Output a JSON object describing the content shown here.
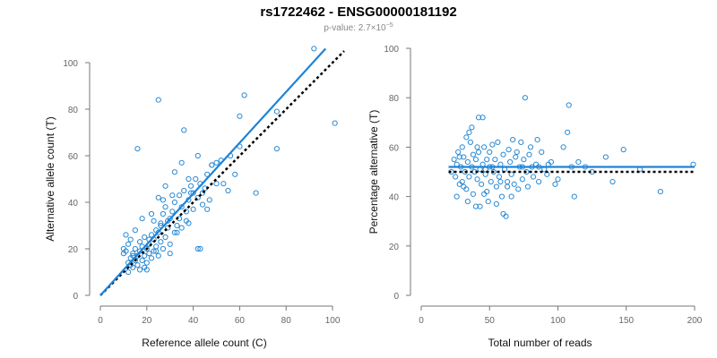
{
  "header": {
    "title": "rs1722462 - ENSG00000181192",
    "pvalue_prefix": "p-value: 2.7×10",
    "pvalue_exp": "−5"
  },
  "chart_data": [
    {
      "type": "scatter",
      "xlabel": "Reference allele count (C)",
      "ylabel": "Alternative allele count (T)",
      "xlim": [
        0,
        105
      ],
      "ylim": [
        0,
        100
      ],
      "xticks": [
        0,
        20,
        40,
        60,
        80,
        100
      ],
      "yticks": [
        0,
        20,
        40,
        60,
        80,
        100
      ],
      "grid": false,
      "point_color": "#2a8ad4",
      "fit_line": {
        "color": "#1f83d8",
        "x": [
          0,
          97
        ],
        "y": [
          0,
          106
        ]
      },
      "reference_line": {
        "color": "#000000",
        "style": "dotted",
        "x": [
          0,
          105
        ],
        "y": [
          0,
          105
        ]
      },
      "points": [
        [
          10,
          20
        ],
        [
          10,
          18
        ],
        [
          11,
          19
        ],
        [
          12,
          14
        ],
        [
          12,
          22
        ],
        [
          13,
          16
        ],
        [
          14,
          12
        ],
        [
          14,
          18
        ],
        [
          15,
          15
        ],
        [
          15,
          20
        ],
        [
          16,
          13
        ],
        [
          16,
          17
        ],
        [
          17,
          19
        ],
        [
          17,
          23
        ],
        [
          18,
          15
        ],
        [
          18,
          21
        ],
        [
          19,
          17
        ],
        [
          19,
          25
        ],
        [
          20,
          20
        ],
        [
          20,
          14
        ],
        [
          21,
          22
        ],
        [
          21,
          18
        ],
        [
          22,
          16
        ],
        [
          22,
          26
        ],
        [
          23,
          24
        ],
        [
          23,
          19
        ],
        [
          24,
          21
        ],
        [
          24,
          28
        ],
        [
          25,
          27
        ],
        [
          25,
          17
        ],
        [
          26,
          31
        ],
        [
          26,
          23
        ],
        [
          27,
          20
        ],
        [
          27,
          35
        ],
        [
          28,
          38
        ],
        [
          28,
          25
        ],
        [
          29,
          29
        ],
        [
          30,
          33
        ],
        [
          30,
          22
        ],
        [
          31,
          36
        ],
        [
          32,
          40
        ],
        [
          32,
          27
        ],
        [
          33,
          30
        ],
        [
          34,
          43
        ],
        [
          34,
          33
        ],
        [
          35,
          38
        ],
        [
          35,
          29
        ],
        [
          36,
          45
        ],
        [
          37,
          36
        ],
        [
          38,
          41
        ],
        [
          38,
          31
        ],
        [
          39,
          47
        ],
        [
          40,
          44
        ],
        [
          40,
          37
        ],
        [
          41,
          50
        ],
        [
          42,
          42
        ],
        [
          43,
          48
        ],
        [
          44,
          39
        ],
        [
          45,
          46
        ],
        [
          46,
          52
        ],
        [
          47,
          41
        ],
        [
          48,
          56
        ],
        [
          50,
          48
        ],
        [
          52,
          58
        ],
        [
          55,
          45
        ],
        [
          56,
          60
        ],
        [
          58,
          52
        ],
        [
          60,
          64
        ],
        [
          15,
          28
        ],
        [
          18,
          33
        ],
        [
          22,
          35
        ],
        [
          25,
          42
        ],
        [
          28,
          47
        ],
        [
          32,
          53
        ],
        [
          35,
          57
        ],
        [
          38,
          50
        ],
        [
          42,
          60
        ],
        [
          11,
          26
        ],
        [
          13,
          24
        ],
        [
          16,
          63
        ],
        [
          25,
          84
        ],
        [
          36,
          71
        ],
        [
          48,
          56
        ],
        [
          60,
          77
        ],
        [
          62,
          86
        ],
        [
          67,
          44
        ],
        [
          76,
          79
        ],
        [
          76,
          63
        ],
        [
          92,
          106
        ],
        [
          101,
          74
        ],
        [
          42,
          20
        ],
        [
          43,
          20
        ],
        [
          20,
          11
        ],
        [
          30,
          18
        ],
        [
          26,
          30
        ],
        [
          24,
          19
        ],
        [
          12,
          10
        ],
        [
          14,
          17
        ],
        [
          19,
          12
        ],
        [
          21,
          24
        ],
        [
          17,
          11
        ],
        [
          13,
          13
        ],
        [
          29,
          32
        ],
        [
          31,
          43
        ],
        [
          44,
          44
        ],
        [
          46,
          37
        ],
        [
          33,
          27
        ],
        [
          39,
          44
        ],
        [
          37,
          32
        ],
        [
          50,
          57
        ],
        [
          53,
          48
        ],
        [
          23,
          32
        ],
        [
          27,
          41
        ]
      ]
    },
    {
      "type": "scatter",
      "xlabel": "Total number of reads",
      "ylabel": "Percentage alternative (T)",
      "xlim": [
        0,
        200
      ],
      "ylim": [
        0,
        100
      ],
      "xticks": [
        0,
        50,
        100,
        150,
        200
      ],
      "yticks": [
        0,
        20,
        40,
        60,
        80,
        100
      ],
      "grid": false,
      "point_color": "#2a8ad4",
      "fit_line": {
        "color": "#1f83d8",
        "x": [
          20,
          200
        ],
        "y": [
          52,
          52
        ]
      },
      "reference_line": {
        "color": "#000000",
        "style": "dotted",
        "x": [
          20,
          200
        ],
        "y": [
          50,
          50
        ]
      },
      "points": [
        [
          22,
          50
        ],
        [
          24,
          55
        ],
        [
          25,
          48
        ],
        [
          26,
          53
        ],
        [
          27,
          58
        ],
        [
          28,
          45
        ],
        [
          29,
          52
        ],
        [
          30,
          60
        ],
        [
          30,
          46
        ],
        [
          31,
          56
        ],
        [
          32,
          50
        ],
        [
          33,
          64
        ],
        [
          33,
          43
        ],
        [
          34,
          54
        ],
        [
          35,
          48
        ],
        [
          35,
          66
        ],
        [
          36,
          62
        ],
        [
          37,
          52
        ],
        [
          38,
          57
        ],
        [
          38,
          41
        ],
        [
          39,
          50
        ],
        [
          40,
          55
        ],
        [
          40,
          36
        ],
        [
          41,
          47
        ],
        [
          42,
          58
        ],
        [
          42,
          72
        ],
        [
          43,
          51
        ],
        [
          44,
          45
        ],
        [
          45,
          72
        ],
        [
          45,
          53
        ],
        [
          46,
          60
        ],
        [
          47,
          49
        ],
        [
          48,
          42
        ],
        [
          48,
          55
        ],
        [
          49,
          38
        ],
        [
          50,
          52
        ],
        [
          50,
          58
        ],
        [
          51,
          46
        ],
        [
          52,
          61
        ],
        [
          53,
          50
        ],
        [
          54,
          55
        ],
        [
          55,
          44
        ],
        [
          56,
          62
        ],
        [
          57,
          48
        ],
        [
          58,
          53
        ],
        [
          59,
          40
        ],
        [
          60,
          57
        ],
        [
          60,
          33
        ],
        [
          61,
          51
        ],
        [
          62,
          32
        ],
        [
          63,
          46
        ],
        [
          64,
          59
        ],
        [
          65,
          54
        ],
        [
          66,
          49
        ],
        [
          67,
          63
        ],
        [
          68,
          45
        ],
        [
          70,
          58
        ],
        [
          71,
          43
        ],
        [
          72,
          52
        ],
        [
          73,
          62
        ],
        [
          74,
          47
        ],
        [
          75,
          55
        ],
        [
          76,
          80
        ],
        [
          77,
          50
        ],
        [
          78,
          44
        ],
        [
          79,
          57
        ],
        [
          80,
          60
        ],
        [
          82,
          48
        ],
        [
          84,
          53
        ],
        [
          85,
          63
        ],
        [
          86,
          46
        ],
        [
          88,
          58
        ],
        [
          90,
          51
        ],
        [
          92,
          49
        ],
        [
          95,
          54
        ],
        [
          98,
          45
        ],
        [
          100,
          47
        ],
        [
          104,
          60
        ],
        [
          107,
          66
        ],
        [
          108,
          77
        ],
        [
          110,
          52
        ],
        [
          112,
          40
        ],
        [
          115,
          54
        ],
        [
          120,
          52
        ],
        [
          125,
          50
        ],
        [
          135,
          56
        ],
        [
          140,
          46
        ],
        [
          148,
          59
        ],
        [
          160,
          51
        ],
        [
          175,
          42
        ],
        [
          199,
          53
        ],
        [
          26,
          40
        ],
        [
          34,
          38
        ],
        [
          43,
          36
        ],
        [
          55,
          37
        ],
        [
          63,
          44
        ],
        [
          69,
          56
        ],
        [
          37,
          68
        ],
        [
          52,
          52
        ],
        [
          46,
          41
        ],
        [
          58,
          46
        ],
        [
          81,
          52
        ],
        [
          93,
          53
        ],
        [
          28,
          56
        ],
        [
          31,
          44
        ],
        [
          41,
          60
        ],
        [
          47,
          51
        ],
        [
          66,
          40
        ],
        [
          74,
          52
        ],
        [
          86,
          52
        ]
      ]
    }
  ]
}
